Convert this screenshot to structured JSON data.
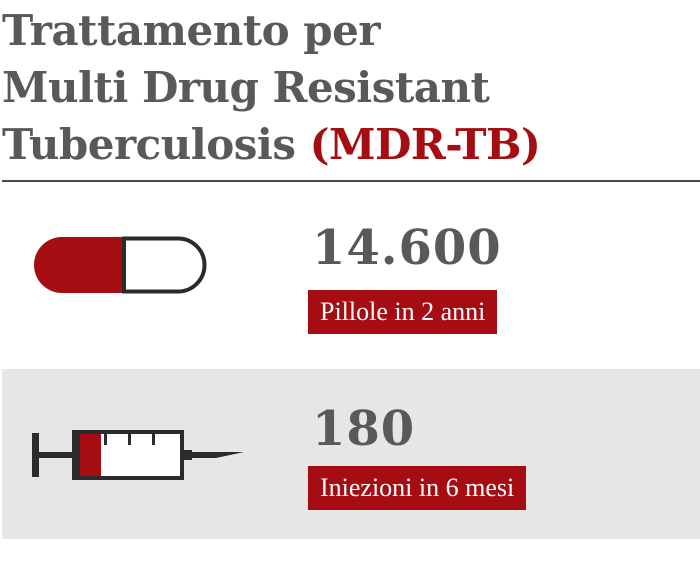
{
  "title": {
    "line1": "Trattamento per",
    "line2": "Multi Drug Resistant",
    "line3_prefix": "Tuberculosis ",
    "line3_accent": "(MDR-TB)"
  },
  "items": [
    {
      "icon": "pill-icon",
      "value": "14.600",
      "label": "Pillole in 2 anni"
    },
    {
      "icon": "syringe-icon",
      "value": "180",
      "label": "Iniezioni in 6 mesi"
    }
  ],
  "colors": {
    "accent": "#a50d12",
    "text": "#595959",
    "band": "#e6e6e6",
    "outline": "#2b2b2b"
  }
}
